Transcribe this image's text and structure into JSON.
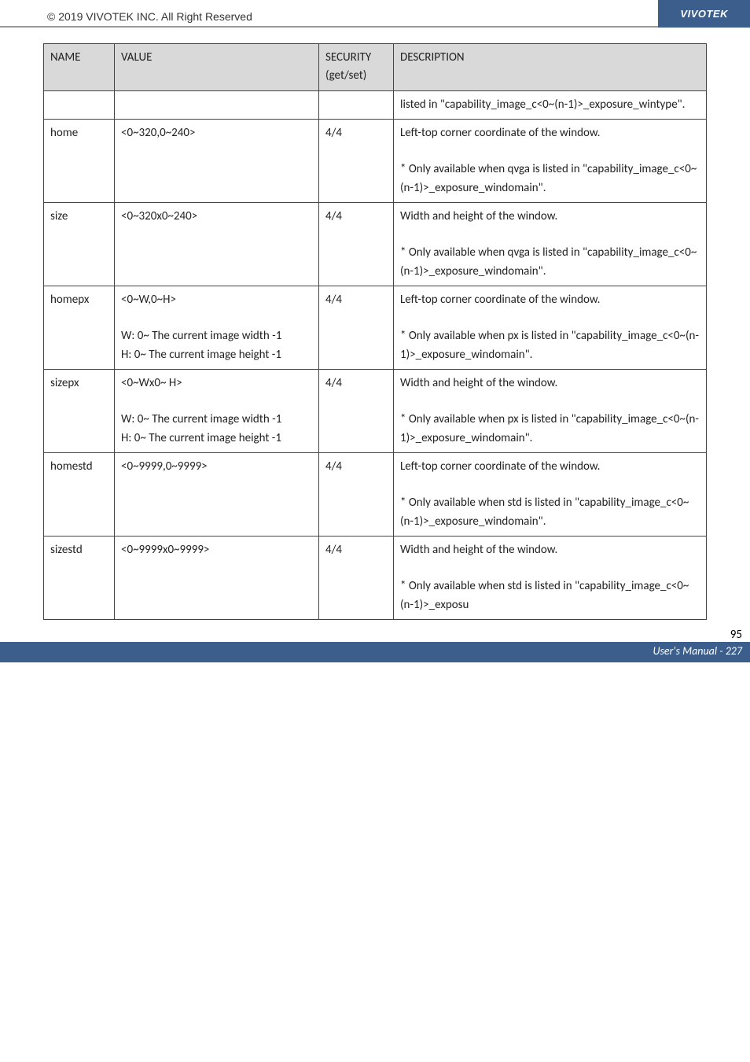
{
  "header": {
    "copyright": "© 2019 VIVOTEK INC. All Right Reserved",
    "brand": "VIVOTEK"
  },
  "table": {
    "columns": {
      "name": "NAME",
      "value": "VALUE",
      "security": "SECURITY (get/set)",
      "description": "DESCRIPTION"
    },
    "rows": [
      {
        "name": "",
        "value": "",
        "security": "",
        "description": "listed in \"capability_image_c<0~(n-1)>_exposure_wintype\"."
      },
      {
        "name": "home",
        "value": "<0~320,0~240>",
        "security": "4/4",
        "description": "Left-top corner coordinate of the window.\n\n* Only available when qvga is listed in \"capability_image_c<0~(n-1)>_exposure_windomain\"."
      },
      {
        "name": "size",
        "value": "<0~320x0~240>",
        "security": "4/4",
        "description": "Width and height of the window.\n\n* Only available when qvga is listed in \"capability_image_c<0~(n-1)>_exposure_windomain\"."
      },
      {
        "name": "homepx",
        "value": "<0~W,0~H>\n\nW: 0~ The current image width -1\nH: 0~ The current image height -1",
        "security": "4/4",
        "description": "Left-top corner coordinate of the window.\n\n* Only available when px is listed in \"capability_image_c<0~(n-1)>_exposure_windomain\"."
      },
      {
        "name": "sizepx",
        "value": "<0~Wx0~ H>\n\nW: 0~ The current image width -1\nH: 0~ The current image height -1",
        "security": "4/4",
        "description": "Width and height of the window.\n\n* Only available when px is listed in \"capability_image_c<0~(n-1)>_exposure_windomain\"."
      },
      {
        "name": "homestd",
        "value": "<0~9999,0~9999>",
        "security": "4/4",
        "description": "Left-top corner coordinate of the window.\n\n* Only available when std is listed in \"capability_image_c<0~(n-1)>_exposure_windomain\"."
      },
      {
        "name": "sizestd",
        "value": "<0~9999x0~9999>",
        "security": "4/4",
        "description": "Width and height of the window.\n\n* Only available when std is listed in \"capability_image_c<0~(n-1)>_exposu"
      }
    ]
  },
  "footer": {
    "pagenum": "95",
    "manual": "User's Manual - 227"
  },
  "style": {
    "header_bg": "#3b5e8c",
    "header_text": "#ffffff",
    "th_bg": "#d9d9d9",
    "border": "#444444",
    "body_font": "Calibri, Arial, sans-serif",
    "font_size_cell": 15
  }
}
